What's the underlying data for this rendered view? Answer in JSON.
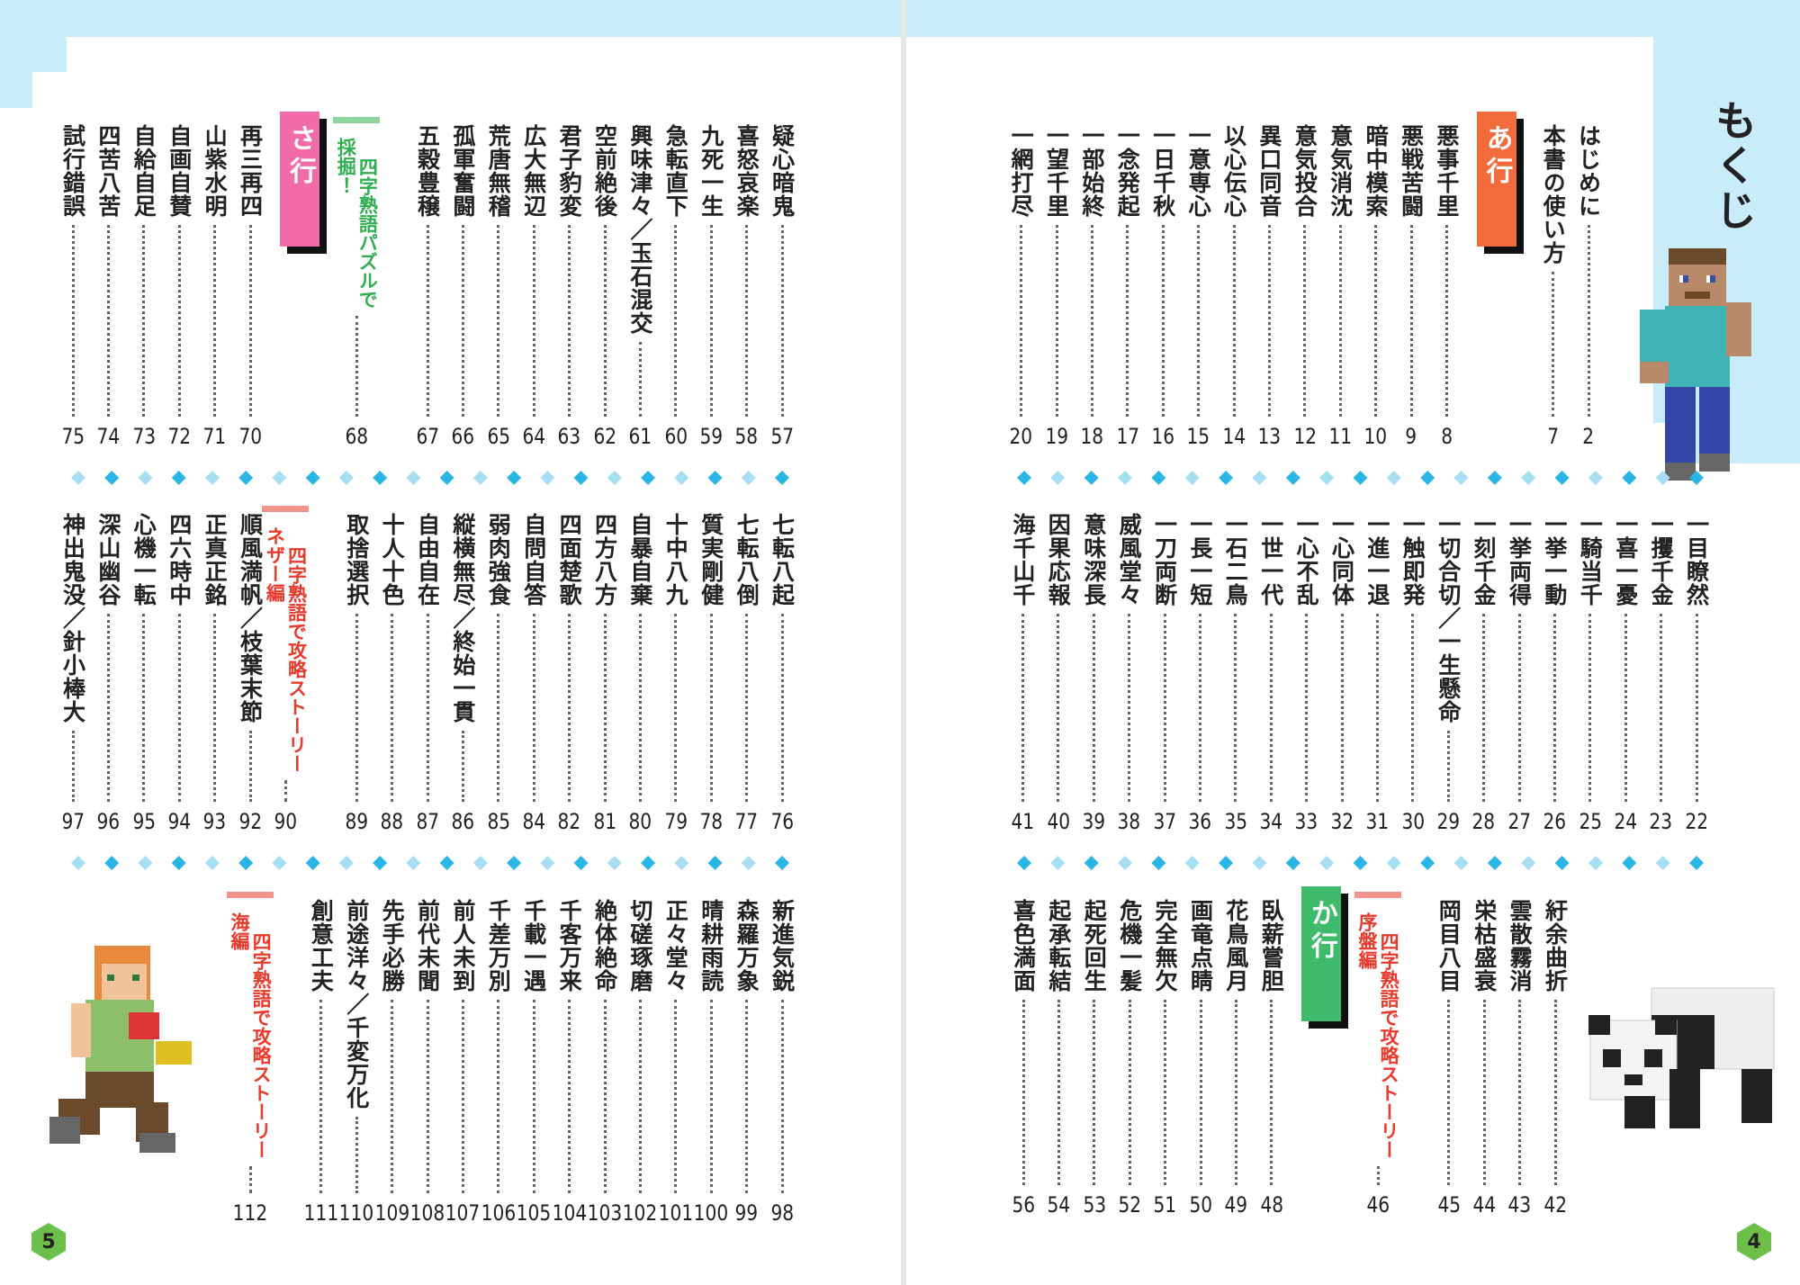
{
  "title": "もくじ",
  "pages": [
    {
      "number": 4,
      "bands": [
        {
          "items": [
            {
              "text": "はじめに",
              "page": 2
            },
            {
              "text": "本書の使い方",
              "page": 7
            },
            {
              "heading": "あ行",
              "color": "#f26b3a"
            },
            {
              "text": "悪事千里",
              "page": 8
            },
            {
              "text": "悪戦苦闘",
              "page": 9
            },
            {
              "text": "暗中模索",
              "page": 10
            },
            {
              "text": "意気消沈",
              "page": 11
            },
            {
              "text": "意気投合",
              "page": 12
            },
            {
              "text": "異口同音",
              "page": 13
            },
            {
              "text": "以心伝心",
              "page": 14
            },
            {
              "text": "一意専心",
              "page": 15
            },
            {
              "text": "一日千秋",
              "page": 16
            },
            {
              "text": "一念発起",
              "page": 17
            },
            {
              "text": "一部始終",
              "page": 18
            },
            {
              "text": "一望千里",
              "page": 19
            },
            {
              "text": "一網打尽",
              "page": 20
            }
          ]
        },
        {
          "items": [
            {
              "text": "一目瞭然",
              "page": 22
            },
            {
              "text": "一攫千金",
              "page": 23
            },
            {
              "text": "一喜一憂",
              "page": 24
            },
            {
              "text": "一騎当千",
              "page": 25
            },
            {
              "text": "一挙一動",
              "page": 26
            },
            {
              "text": "一挙両得",
              "page": 27
            },
            {
              "text": "一刻千金",
              "page": 28
            },
            {
              "text": "一切合切／一生懸命",
              "page": 29
            },
            {
              "text": "一触即発",
              "page": 30
            },
            {
              "text": "一進一退",
              "page": 31
            },
            {
              "text": "一心同体",
              "page": 32
            },
            {
              "text": "一心不乱",
              "page": 33
            },
            {
              "text": "一世一代",
              "page": 34
            },
            {
              "text": "一石二鳥",
              "page": 35
            },
            {
              "text": "一長一短",
              "page": 36
            },
            {
              "text": "一刀両断",
              "page": 37
            },
            {
              "text": "威風堂々",
              "page": 38
            },
            {
              "text": "意味深長",
              "page": 39
            },
            {
              "text": "因果応報",
              "page": 40
            },
            {
              "text": "海千山千",
              "page": 41
            }
          ]
        },
        {
          "items": [
            {
              "text": "紆余曲折",
              "page": 42
            },
            {
              "text": "雲散霧消",
              "page": 43
            },
            {
              "text": "栄枯盛衰",
              "page": 44
            },
            {
              "text": "岡目八目",
              "page": 45
            },
            {
              "feature": "四字熟語で攻略ストーリー",
              "sub": "序盤編",
              "page": 46,
              "color": "#e8392b"
            },
            {
              "heading": "か行",
              "color": "#3dbb6a"
            },
            {
              "text": "臥薪嘗胆",
              "page": 48
            },
            {
              "text": "花鳥風月",
              "page": 49
            },
            {
              "text": "画竜点睛",
              "page": 50
            },
            {
              "text": "完全無欠",
              "page": 51
            },
            {
              "text": "危機一髪",
              "page": 52
            },
            {
              "text": "起死回生",
              "page": 53
            },
            {
              "text": "起承転結",
              "page": 54
            },
            {
              "text": "喜色満面",
              "page": 56
            }
          ]
        }
      ]
    },
    {
      "number": 5,
      "bands": [
        {
          "items": [
            {
              "text": "疑心暗鬼",
              "page": 57
            },
            {
              "text": "喜怒哀楽",
              "page": 58
            },
            {
              "text": "九死一生",
              "page": 59
            },
            {
              "text": "急転直下",
              "page": 60
            },
            {
              "text": "興味津々／玉石混交",
              "page": 61
            },
            {
              "text": "空前絶後",
              "page": 62
            },
            {
              "text": "君子豹変",
              "page": 63
            },
            {
              "text": "広大無辺",
              "page": 64
            },
            {
              "text": "荒唐無稽",
              "page": 65
            },
            {
              "text": "孤軍奮闘",
              "page": 66
            },
            {
              "text": "五穀豊穣",
              "page": 67
            },
            {
              "feature": "四字熟語パズルで",
              "sub": "採掘！",
              "page": 68,
              "color": "#2fae4f"
            },
            {
              "heading": "さ行",
              "color": "#f06ba8"
            },
            {
              "text": "再三再四",
              "page": 70
            },
            {
              "text": "山紫水明",
              "page": 71
            },
            {
              "text": "自画自賛",
              "page": 72
            },
            {
              "text": "自給自足",
              "page": 73
            },
            {
              "text": "四苦八苦",
              "page": 74
            },
            {
              "text": "試行錯誤",
              "page": 75
            }
          ]
        },
        {
          "items": [
            {
              "text": "七転八起",
              "page": 76
            },
            {
              "text": "七転八倒",
              "page": 77
            },
            {
              "text": "質実剛健",
              "page": 78
            },
            {
              "text": "十中八九",
              "page": 79
            },
            {
              "text": "自暴自棄",
              "page": 80
            },
            {
              "text": "四方八方",
              "page": 81
            },
            {
              "text": "四面楚歌",
              "page": 82
            },
            {
              "text": "自問自答",
              "page": 84
            },
            {
              "text": "弱肉強食",
              "page": 85
            },
            {
              "text": "縦横無尽／終始一貫",
              "page": 86
            },
            {
              "text": "自由自在",
              "page": 87
            },
            {
              "text": "十人十色",
              "page": 88
            },
            {
              "text": "取捨選択",
              "page": 89
            },
            {
              "feature": "四字熟語で攻略ストーリー",
              "sub": "ネザー編",
              "page": 90,
              "color": "#e8392b"
            },
            {
              "text": "順風満帆／枝葉末節",
              "page": 92
            },
            {
              "text": "正真正銘",
              "page": 93
            },
            {
              "text": "四六時中",
              "page": 94
            },
            {
              "text": "心機一転",
              "page": 95
            },
            {
              "text": "深山幽谷",
              "page": 96
            },
            {
              "text": "神出鬼没／針小棒大",
              "page": 97
            }
          ]
        },
        {
          "items": [
            {
              "text": "新進気鋭",
              "page": 98
            },
            {
              "text": "森羅万象",
              "page": 99
            },
            {
              "text": "晴耕雨読",
              "page": 100
            },
            {
              "text": "正々堂々",
              "page": 101
            },
            {
              "text": "切磋琢磨",
              "page": 102
            },
            {
              "text": "絶体絶命",
              "page": 103
            },
            {
              "text": "千客万来",
              "page": 104
            },
            {
              "text": "千載一遇",
              "page": 105
            },
            {
              "text": "千差万別",
              "page": 106
            },
            {
              "text": "前人未到",
              "page": 107
            },
            {
              "text": "前代未聞",
              "page": 108
            },
            {
              "text": "先手必勝",
              "page": 109
            },
            {
              "text": "前途洋々／千変万化",
              "page": 110
            },
            {
              "text": "創意工夫",
              "page": 111
            },
            {
              "feature": "四字熟語で攻略ストーリー",
              "sub": "海編",
              "page": 112,
              "color": "#e8392b"
            }
          ]
        }
      ]
    }
  ]
}
